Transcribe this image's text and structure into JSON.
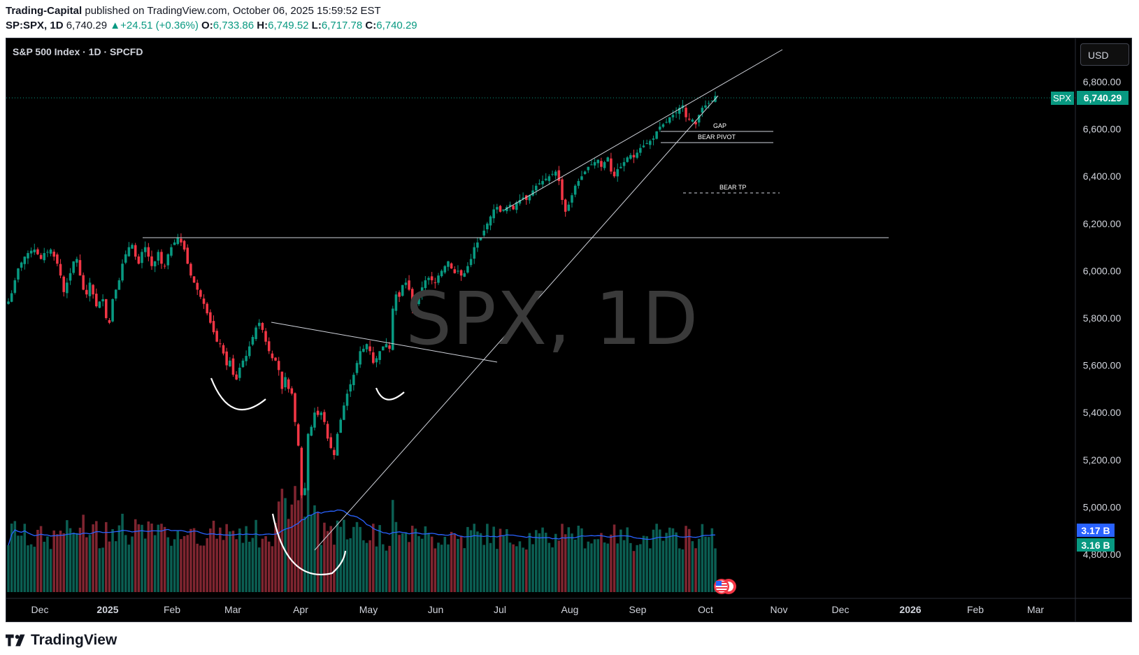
{
  "header": {
    "author": "Trading-Capital",
    "published_text": "published on TradingView.com, October 06, 2025 15:59:52 EST",
    "symbol": "SP:SPX, 1D",
    "last": "6,740.29",
    "change": "+24.51 (+0.36%)",
    "o_label": "O:",
    "o_val": "6,733.86",
    "h_label": "H:",
    "h_val": "6,749.52",
    "l_label": "L:",
    "l_val": "6,717.78",
    "c_label": "C:",
    "c_val": "6,740.29"
  },
  "chart_title": "S&P 500 Index · 1D · SPCFD",
  "currency": "USD",
  "watermark": "SPX, 1D",
  "footer_brand": "TradingView",
  "colors": {
    "up": "#089981",
    "down": "#f23645",
    "background": "#000000",
    "volume_ma": "#2962ff",
    "price_tag": "#089981"
  },
  "chart_data": {
    "type": "candlestick",
    "title": "S&P 500 Index · 1D · SPCFD",
    "price_axis": {
      "ticks": [
        "6,800.00",
        "6,600.00",
        "6,400.00",
        "6,200.00",
        "6,000.00",
        "5,800.00",
        "5,600.00",
        "5,400.00",
        "5,200.00",
        "5,000.00",
        "4,800.00"
      ],
      "range": [
        4650,
        6890
      ]
    },
    "time_axis": {
      "ticks": [
        {
          "label": "Dec",
          "bold": false
        },
        {
          "label": "2025",
          "bold": true
        },
        {
          "label": "Feb",
          "bold": false
        },
        {
          "label": "Mar",
          "bold": false
        },
        {
          "label": "Apr",
          "bold": false
        },
        {
          "label": "May",
          "bold": false
        },
        {
          "label": "Jun",
          "bold": false
        },
        {
          "label": "Jul",
          "bold": false
        },
        {
          "label": "Aug",
          "bold": false
        },
        {
          "label": "Sep",
          "bold": false
        },
        {
          "label": "Oct",
          "bold": false
        },
        {
          "label": "Nov",
          "bold": false
        },
        {
          "label": "Dec",
          "bold": false
        },
        {
          "label": "2026",
          "bold": true
        },
        {
          "label": "Feb",
          "bold": false
        },
        {
          "label": "Mar",
          "bold": false
        }
      ]
    },
    "last_price_tag": {
      "symbol": "SPX",
      "value": "6,740.29",
      "price": 6740.29
    },
    "volume_tags": [
      {
        "label": "3.17 B",
        "color": "#2962ff"
      },
      {
        "label": "3.16 B",
        "color": "#089981"
      }
    ],
    "close_series": [
      5870,
      5905,
      5960,
      6010,
      6035,
      6060,
      6075,
      6085,
      6090,
      6070,
      6050,
      6075,
      6080,
      6090,
      6060,
      6030,
      5980,
      5910,
      5950,
      5990,
      6040,
      6050,
      5980,
      5920,
      5900,
      5950,
      5900,
      5850,
      5870,
      5880,
      5800,
      5780,
      5880,
      5920,
      5960,
      6030,
      6070,
      6100,
      6110,
      6060,
      6030,
      6080,
      6100,
      6060,
      6020,
      6040,
      6080,
      6030,
      6020,
      6070,
      6100,
      6120,
      6140,
      6120,
      6090,
      6030,
      5980,
      5950,
      5920,
      5890,
      5860,
      5820,
      5780,
      5740,
      5700,
      5690,
      5650,
      5600,
      5620,
      5560,
      5540,
      5590,
      5620,
      5640,
      5680,
      5720,
      5760,
      5780,
      5750,
      5700,
      5660,
      5630,
      5620,
      5580,
      5500,
      5550,
      5500,
      5480,
      5360,
      5260,
      5050,
      5080,
      5310,
      5340,
      5400,
      5390,
      5400,
      5360,
      5290,
      5250,
      5220,
      5310,
      5370,
      5430,
      5480,
      5520,
      5560,
      5610,
      5660,
      5670,
      5690,
      5660,
      5610,
      5630,
      5660,
      5680,
      5690,
      5670,
      5840,
      5900,
      5890,
      5940,
      5950,
      5920,
      5840,
      5850,
      5890,
      5930,
      5960,
      5970,
      5960,
      5950,
      5980,
      6000,
      6020,
      6040,
      6010,
      5990,
      6000,
      5980,
      5990,
      6020,
      6050,
      6100,
      6120,
      6140,
      6170,
      6200,
      6230,
      6260,
      6270,
      6250,
      6260,
      6270,
      6280,
      6260,
      6290,
      6300,
      6310,
      6300,
      6320,
      6340,
      6360,
      6370,
      6380,
      6390,
      6400,
      6410,
      6420,
      6380,
      6300,
      6250,
      6280,
      6320,
      6360,
      6380,
      6400,
      6420,
      6440,
      6450,
      6460,
      6470,
      6440,
      6460,
      6480,
      6420,
      6400,
      6430,
      6440,
      6460,
      6480,
      6490,
      6480,
      6500,
      6520,
      6530,
      6540,
      6550,
      6560,
      6590,
      6610,
      6620,
      6630,
      6650,
      6660,
      6670,
      6690,
      6700,
      6650,
      6640,
      6640,
      6620,
      6660,
      6690,
      6700,
      6710,
      6720,
      6740
    ],
    "annotations": [
      {
        "label": "GAP",
        "type": "zone"
      },
      {
        "label": "BEAR PIVOT",
        "type": "zone"
      },
      {
        "label": "BEAR TP",
        "type": "level",
        "style": "dashed"
      }
    ]
  }
}
